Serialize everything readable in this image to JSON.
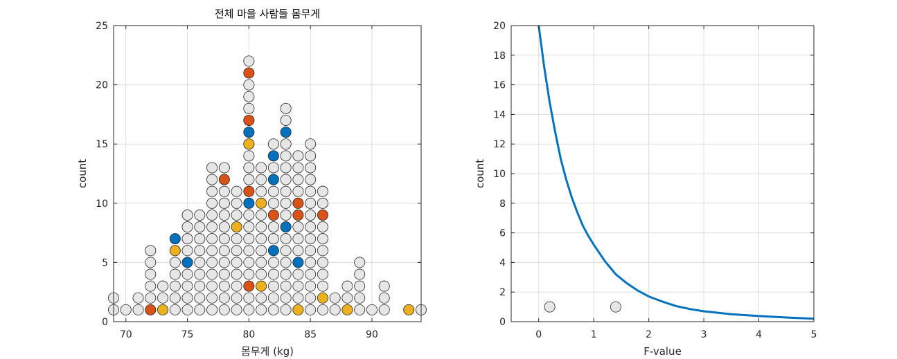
{
  "chart_data": [
    {
      "type": "scatter",
      "title": "전체 마을 사람들 몸무게",
      "xlabel": "몸무게 (kg)",
      "ylabel": "count",
      "xlim": [
        69,
        94
      ],
      "ylim": [
        0,
        25
      ],
      "xticks": [
        70,
        75,
        80,
        85,
        90
      ],
      "yticks": [
        0,
        5,
        10,
        15,
        20,
        25
      ],
      "grid": true,
      "colors": {
        "default": "#e6e6e6",
        "red": "#d95319",
        "yellow": "#edb120",
        "blue": "#0072bd",
        "edge": "#222222"
      },
      "stacks": [
        {
          "x": 69,
          "count": 2,
          "highlights": []
        },
        {
          "x": 70,
          "count": 1,
          "highlights": []
        },
        {
          "x": 71,
          "count": 2,
          "highlights": []
        },
        {
          "x": 72,
          "count": 6,
          "highlights": [
            {
              "y": 1,
              "color": "red"
            }
          ]
        },
        {
          "x": 73,
          "count": 3,
          "highlights": [
            {
              "y": 1,
              "color": "yellow"
            }
          ]
        },
        {
          "x": 74,
          "count": 7,
          "highlights": [
            {
              "y": 6,
              "color": "yellow"
            },
            {
              "y": 7,
              "color": "blue"
            }
          ]
        },
        {
          "x": 75,
          "count": 9,
          "highlights": [
            {
              "y": 5,
              "color": "blue"
            }
          ]
        },
        {
          "x": 76,
          "count": 9,
          "highlights": []
        },
        {
          "x": 77,
          "count": 13,
          "highlights": []
        },
        {
          "x": 78,
          "count": 13,
          "highlights": [
            {
              "y": 12,
              "color": "red"
            }
          ]
        },
        {
          "x": 79,
          "count": 11,
          "highlights": [
            {
              "y": 8,
              "color": "yellow"
            }
          ]
        },
        {
          "x": 80,
          "count": 22,
          "highlights": [
            {
              "y": 3,
              "color": "red"
            },
            {
              "y": 10,
              "color": "blue"
            },
            {
              "y": 11,
              "color": "red"
            },
            {
              "y": 15,
              "color": "yellow"
            },
            {
              "y": 16,
              "color": "blue"
            },
            {
              "y": 17,
              "color": "red"
            },
            {
              "y": 21,
              "color": "red"
            }
          ]
        },
        {
          "x": 81,
          "count": 13,
          "highlights": [
            {
              "y": 3,
              "color": "yellow"
            },
            {
              "y": 10,
              "color": "yellow"
            }
          ]
        },
        {
          "x": 82,
          "count": 15,
          "highlights": [
            {
              "y": 6,
              "color": "blue"
            },
            {
              "y": 9,
              "color": "red"
            },
            {
              "y": 12,
              "color": "blue"
            },
            {
              "y": 14,
              "color": "blue"
            }
          ]
        },
        {
          "x": 83,
          "count": 18,
          "highlights": [
            {
              "y": 8,
              "color": "blue"
            },
            {
              "y": 16,
              "color": "blue"
            }
          ]
        },
        {
          "x": 84,
          "count": 14,
          "highlights": [
            {
              "y": 1,
              "color": "yellow"
            },
            {
              "y": 5,
              "color": "blue"
            },
            {
              "y": 9,
              "color": "red"
            },
            {
              "y": 10,
              "color": "red"
            }
          ]
        },
        {
          "x": 85,
          "count": 15,
          "highlights": []
        },
        {
          "x": 86,
          "count": 11,
          "highlights": [
            {
              "y": 2,
              "color": "yellow"
            },
            {
              "y": 9,
              "color": "red"
            }
          ]
        },
        {
          "x": 87,
          "count": 2,
          "highlights": []
        },
        {
          "x": 88,
          "count": 3,
          "highlights": [
            {
              "y": 1,
              "color": "yellow"
            }
          ]
        },
        {
          "x": 89,
          "count": 5,
          "highlights": []
        },
        {
          "x": 90,
          "count": 1,
          "highlights": []
        },
        {
          "x": 91,
          "count": 3,
          "highlights": []
        },
        {
          "x": 93,
          "count": 1,
          "highlights": [
            {
              "y": 1,
              "color": "yellow"
            }
          ]
        },
        {
          "x": 94,
          "count": 1,
          "highlights": []
        }
      ]
    },
    {
      "type": "line",
      "title": "",
      "xlabel": "F-value",
      "ylabel": "count",
      "xlim": [
        -0.5,
        5
      ],
      "ylim": [
        0,
        20
      ],
      "xticks": [
        0,
        1,
        2,
        3,
        4,
        5
      ],
      "yticks": [
        0,
        2,
        4,
        6,
        8,
        10,
        12,
        14,
        16,
        18,
        20
      ],
      "grid": true,
      "line_color": "#0072bd",
      "curve": {
        "x": [
          0,
          0.1,
          0.2,
          0.3,
          0.4,
          0.5,
          0.6,
          0.7,
          0.8,
          0.9,
          1.0,
          1.2,
          1.4,
          1.6,
          1.8,
          2.0,
          2.25,
          2.5,
          2.75,
          3.0,
          3.5,
          4.0,
          4.5,
          5.0
        ],
        "y": [
          20.0,
          17.2,
          14.8,
          12.8,
          11.0,
          9.6,
          8.4,
          7.4,
          6.5,
          5.8,
          5.2,
          4.1,
          3.2,
          2.6,
          2.1,
          1.7,
          1.35,
          1.05,
          0.85,
          0.7,
          0.5,
          0.38,
          0.28,
          0.2
        ]
      },
      "points": [
        {
          "x": 0.2,
          "y": 1
        },
        {
          "x": 1.4,
          "y": 1
        }
      ],
      "point_color": "#e6e6e6"
    }
  ]
}
